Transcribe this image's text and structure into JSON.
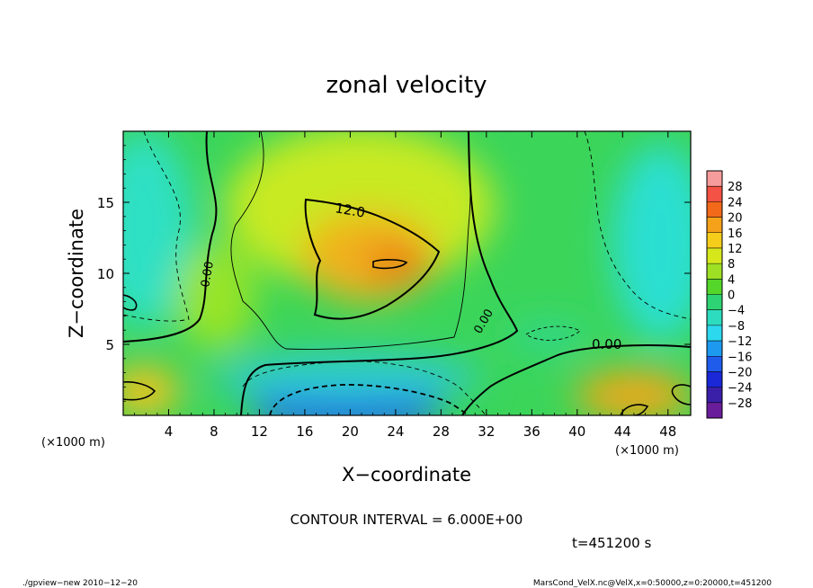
{
  "chart_data": {
    "type": "heatmap",
    "title": "zonal velocity",
    "xlabel": "X−coordinate",
    "ylabel": "Z−coordinate",
    "x_unit_label": "(×1000 m)",
    "y_unit_label": "(×1000 m)",
    "xlim": [
      0,
      50
    ],
    "ylim": [
      0,
      20
    ],
    "x_ticks": [
      4,
      8,
      12,
      16,
      20,
      24,
      28,
      32,
      36,
      40,
      44,
      48
    ],
    "y_ticks": [
      5,
      10,
      15
    ],
    "x_tick_labels": [
      "4",
      "8",
      "12",
      "16",
      "20",
      "24",
      "28",
      "32",
      "36",
      "40",
      "44",
      "48"
    ],
    "y_tick_labels": [
      "5",
      "10",
      "15"
    ],
    "colorbar_levels": [
      28,
      24,
      20,
      16,
      12,
      8,
      4,
      0,
      -4,
      -8,
      -12,
      -16,
      -20,
      -24,
      -28
    ],
    "colorbar_labels": [
      "28",
      "24",
      "20",
      "16",
      "12",
      "8",
      "4",
      "0",
      "−4",
      "−8",
      "−12",
      "−16",
      "−20",
      "−24",
      "−28"
    ],
    "contour_labels": [
      "12.0",
      "0.00",
      "0.00",
      "0.00"
    ],
    "contour_interval_text": "CONTOUR INTERVAL = 6.000E+00",
    "time_text": "t=451200 s",
    "features": [
      {
        "name": "jet maximum",
        "x": 23,
        "z": 11,
        "value": 18
      },
      {
        "name": "low-level reverse flow",
        "x": 22,
        "z": 0.5,
        "value": -20
      },
      {
        "name": "lower-left jet",
        "x": 2,
        "z": 1.5,
        "value": 14
      },
      {
        "name": "lower-right jet",
        "x": 47,
        "z": 1.5,
        "value": 16
      }
    ]
  },
  "footer": {
    "left": "./gpview−new   2010−12−20",
    "right": "MarsCond_VelX.nc@VelX,x=0:50000,z=0:20000,t=451200"
  }
}
